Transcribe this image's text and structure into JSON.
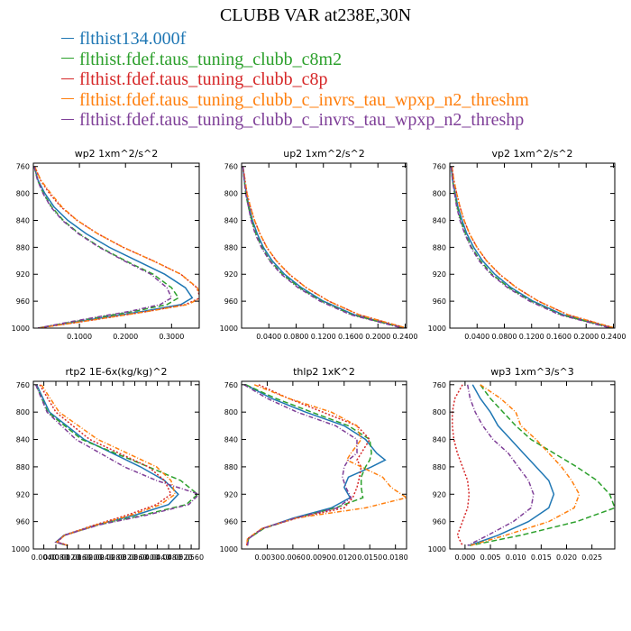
{
  "title": "CLUBB VAR at238E,30N",
  "legend": [
    {
      "name": "flthist134.000f",
      "color": "#1f77b4"
    },
    {
      "name": "flthist.fdef.taus_tuning_clubb_c8m2",
      "color": "#2ca02c"
    },
    {
      "name": "flthist.fdef.taus_tuning_clubb_c8p",
      "color": "#d62728"
    },
    {
      "name": "flthist.fdef.taus_tuning_clubb_c_invrs_tau_wpxp_n2_threshm",
      "color": "#ff7f0e"
    },
    {
      "name": "flthist.fdef.taus_tuning_clubb_c_invrs_tau_wpxp_n2_threshp",
      "color": "#7f3f98"
    }
  ],
  "chart_data": [
    {
      "type": "line",
      "title": "wp2  1xm^2/s^2",
      "xlim": [
        0,
        0.36
      ],
      "xticks": [
        "0.1000",
        "0.2000",
        "0.3000"
      ],
      "xtick_values": [
        0.1,
        0.2,
        0.3
      ],
      "ylim": [
        1000,
        755
      ],
      "yticks": [
        760,
        800,
        840,
        880,
        920,
        960,
        1000
      ],
      "y": [
        760,
        780,
        800,
        820,
        840,
        860,
        880,
        900,
        920,
        940,
        955,
        965,
        975,
        990,
        1000
      ],
      "series": [
        {
          "name": "flthist134.000f",
          "values": [
            0.002,
            0.01,
            0.025,
            0.045,
            0.075,
            0.115,
            0.165,
            0.225,
            0.285,
            0.33,
            0.345,
            0.32,
            0.24,
            0.1,
            0.01
          ]
        },
        {
          "name": "flthist.fdef.taus_tuning_clubb_c8m2",
          "values": [
            0.002,
            0.009,
            0.022,
            0.04,
            0.065,
            0.1,
            0.145,
            0.2,
            0.26,
            0.3,
            0.315,
            0.29,
            0.22,
            0.09,
            0.01
          ]
        },
        {
          "name": "flthist.fdef.taus_tuning_clubb_c8p",
          "values": [
            0.003,
            0.015,
            0.035,
            0.06,
            0.095,
            0.14,
            0.195,
            0.26,
            0.32,
            0.355,
            0.362,
            0.33,
            0.25,
            0.11,
            0.01
          ]
        },
        {
          "name": "flthist.fdef.taus_tuning_clubb_c_invrs_tau_wpxp_n2_threshm",
          "values": [
            0.003,
            0.016,
            0.038,
            0.062,
            0.095,
            0.14,
            0.195,
            0.26,
            0.32,
            0.356,
            0.364,
            0.335,
            0.25,
            0.11,
            0.01
          ]
        },
        {
          "name": "flthist.fdef.taus_tuning_clubb_c_invrs_tau_wpxp_n2_threshp",
          "values": [
            0.002,
            0.009,
            0.021,
            0.038,
            0.063,
            0.098,
            0.143,
            0.197,
            0.255,
            0.29,
            0.3,
            0.275,
            0.21,
            0.085,
            0.01
          ]
        }
      ]
    },
    {
      "type": "line",
      "title": "up2  1xm^2/s^2",
      "xlim": [
        0,
        0.242
      ],
      "xticks": [
        "0.0400",
        "0.0800",
        "0.1200",
        "0.1600",
        "0.2000",
        "0.2400"
      ],
      "xtick_values": [
        0.04,
        0.08,
        0.12,
        0.16,
        0.2,
        0.24
      ],
      "ylim": [
        1000,
        755
      ],
      "yticks": [
        760,
        800,
        840,
        880,
        920,
        960,
        1000
      ],
      "y": [
        760,
        780,
        800,
        820,
        840,
        860,
        880,
        900,
        920,
        940,
        960,
        980,
        1000
      ],
      "series": [
        {
          "name": "flthist134.000f",
          "values": [
            0.002,
            0.004,
            0.007,
            0.011,
            0.016,
            0.023,
            0.032,
            0.045,
            0.063,
            0.088,
            0.12,
            0.165,
            0.24
          ]
        },
        {
          "name": "flthist.fdef.taus_tuning_clubb_c8m2",
          "values": [
            0.002,
            0.004,
            0.006,
            0.01,
            0.015,
            0.021,
            0.03,
            0.042,
            0.06,
            0.085,
            0.117,
            0.162,
            0.238
          ]
        },
        {
          "name": "flthist.fdef.taus_tuning_clubb_c8p",
          "values": [
            0.002,
            0.005,
            0.008,
            0.013,
            0.019,
            0.027,
            0.037,
            0.051,
            0.07,
            0.095,
            0.128,
            0.172,
            0.242
          ]
        },
        {
          "name": "flthist.fdef.taus_tuning_clubb_c_invrs_tau_wpxp_n2_threshm",
          "values": [
            0.002,
            0.005,
            0.008,
            0.013,
            0.019,
            0.027,
            0.037,
            0.051,
            0.07,
            0.095,
            0.128,
            0.172,
            0.242
          ]
        },
        {
          "name": "flthist.fdef.taus_tuning_clubb_c_invrs_tau_wpxp_n2_threshp",
          "values": [
            0.002,
            0.004,
            0.006,
            0.01,
            0.014,
            0.02,
            0.029,
            0.041,
            0.058,
            0.083,
            0.115,
            0.16,
            0.236
          ]
        }
      ]
    },
    {
      "type": "line",
      "title": "vp2  1xm^2/s^2",
      "xlim": [
        0,
        0.242
      ],
      "xticks": [
        "0.0400",
        "0.0800",
        "0.1200",
        "0.1600",
        "0.2000",
        "0.2400"
      ],
      "xtick_values": [
        0.04,
        0.08,
        0.12,
        0.16,
        0.2,
        0.24
      ],
      "ylim": [
        1000,
        755
      ],
      "yticks": [
        760,
        800,
        840,
        880,
        920,
        960,
        1000
      ],
      "y": [
        760,
        780,
        800,
        820,
        840,
        860,
        880,
        900,
        920,
        940,
        960,
        980,
        1000
      ],
      "series": [
        {
          "name": "flthist134.000f",
          "values": [
            0.002,
            0.004,
            0.008,
            0.012,
            0.018,
            0.025,
            0.035,
            0.048,
            0.066,
            0.09,
            0.122,
            0.166,
            0.24
          ]
        },
        {
          "name": "flthist.fdef.taus_tuning_clubb_c8m2",
          "values": [
            0.002,
            0.004,
            0.007,
            0.011,
            0.016,
            0.023,
            0.032,
            0.045,
            0.062,
            0.087,
            0.119,
            0.163,
            0.238
          ]
        },
        {
          "name": "flthist.fdef.taus_tuning_clubb_c8p",
          "values": [
            0.003,
            0.006,
            0.01,
            0.015,
            0.021,
            0.029,
            0.04,
            0.054,
            0.073,
            0.098,
            0.13,
            0.173,
            0.242
          ]
        },
        {
          "name": "flthist.fdef.taus_tuning_clubb_c_invrs_tau_wpxp_n2_threshm",
          "values": [
            0.003,
            0.006,
            0.01,
            0.015,
            0.021,
            0.029,
            0.04,
            0.054,
            0.073,
            0.098,
            0.13,
            0.173,
            0.242
          ]
        },
        {
          "name": "flthist.fdef.taus_tuning_clubb_c_invrs_tau_wpxp_n2_threshp",
          "values": [
            0.002,
            0.004,
            0.007,
            0.01,
            0.015,
            0.022,
            0.031,
            0.043,
            0.06,
            0.085,
            0.117,
            0.161,
            0.236
          ]
        }
      ]
    },
    {
      "type": "line",
      "title": "rtp2  1E-6x(kg/kg)^2",
      "xlim": [
        0.2,
        20.8
      ],
      "xticks": [
        "0.0040",
        "0.0080",
        "0.0120",
        "0.0160",
        "0.0200",
        "0.0240",
        "0.0280",
        "0.0320",
        "0.0360",
        "0.0400",
        "0.0440",
        "0.0480",
        "0.0520",
        "0.0560"
      ],
      "xtick_values": [
        1.5,
        3.0,
        4.4,
        5.8,
        7.2,
        8.6,
        10.0,
        11.4,
        12.8,
        14.2,
        15.6,
        17.0,
        18.4,
        19.8
      ],
      "ylim": [
        1000,
        755
      ],
      "yticks": [
        760,
        800,
        840,
        880,
        920,
        960,
        1000
      ],
      "y": [
        760,
        800,
        840,
        880,
        900,
        920,
        935,
        950,
        965,
        980,
        990,
        995
      ],
      "series": [
        {
          "name": "flthist134.000f",
          "values": [
            0.6,
            2.2,
            6.5,
            13.5,
            16.5,
            18.2,
            17.0,
            13.0,
            8.0,
            4.0,
            3.0,
            4.5
          ]
        },
        {
          "name": "flthist.fdef.taus_tuning_clubb_c8m2",
          "values": [
            0.5,
            2.0,
            6.2,
            14.5,
            18.5,
            20.6,
            19.2,
            14.0,
            8.2,
            4.1,
            3.0,
            4.4
          ]
        },
        {
          "name": "flthist.fdef.taus_tuning_clubb_c8p",
          "values": [
            1.0,
            3.0,
            7.2,
            14.5,
            16.5,
            17.3,
            15.5,
            12.0,
            7.8,
            4.0,
            3.2,
            4.6
          ]
        },
        {
          "name": "flthist.fdef.taus_tuning_clubb_c_invrs_tau_wpxp_n2_threshm",
          "values": [
            1.2,
            3.4,
            8.2,
            15.5,
            17.3,
            17.8,
            16.0,
            12.5,
            8.0,
            4.1,
            3.1,
            4.5
          ]
        },
        {
          "name": "flthist.fdef.taus_tuning_clubb_c_invrs_tau_wpxp_n2_threshp",
          "values": [
            0.5,
            1.9,
            5.5,
            11.5,
            15.5,
            20.8,
            19.5,
            14.5,
            8.3,
            4.1,
            3.0,
            4.4
          ]
        }
      ]
    },
    {
      "type": "line",
      "title": "thlp2  1xK^2",
      "xlim": [
        0.0,
        0.0193
      ],
      "xticks": [
        "0.0030",
        "0.0060",
        "0.0090",
        "0.0120",
        "0.0150",
        "0.0180"
      ],
      "xtick_values": [
        0.003,
        0.006,
        0.009,
        0.012,
        0.015,
        0.018
      ],
      "ylim": [
        1000,
        755
      ],
      "yticks": [
        760,
        800,
        840,
        880,
        920,
        960,
        1000
      ],
      "y": [
        760,
        780,
        800,
        820,
        840,
        860,
        870,
        880,
        895,
        910,
        925,
        940,
        955,
        970,
        985,
        995
      ],
      "series": [
        {
          "name": "flthist134.000f",
          "values": [
            0.0005,
            0.0035,
            0.0075,
            0.012,
            0.0145,
            0.0158,
            0.0168,
            0.0152,
            0.0125,
            0.012,
            0.0127,
            0.0105,
            0.006,
            0.0025,
            0.0008,
            0.0007
          ]
        },
        {
          "name": "flthist.fdef.taus_tuning_clubb_c8m2",
          "values": [
            0.0005,
            0.004,
            0.0082,
            0.0125,
            0.015,
            0.0152,
            0.015,
            0.0145,
            0.014,
            0.014,
            0.0142,
            0.011,
            0.0063,
            0.0026,
            0.0008,
            0.0007
          ]
        },
        {
          "name": "flthist.fdef.taus_tuning_clubb_c8p",
          "values": [
            0.002,
            0.0055,
            0.0095,
            0.0135,
            0.015,
            0.014,
            0.0135,
            0.014,
            0.0138,
            0.0135,
            0.013,
            0.012,
            0.0065,
            0.0024,
            0.0007,
            0.0006
          ]
        },
        {
          "name": "flthist.fdef.taus_tuning_clubb_c_invrs_tau_wpxp_n2_threshm",
          "values": [
            0.0015,
            0.0055,
            0.0105,
            0.0135,
            0.014,
            0.0128,
            0.0123,
            0.014,
            0.0165,
            0.0175,
            0.0193,
            0.0145,
            0.0063,
            0.0024,
            0.0007,
            0.0006
          ]
        },
        {
          "name": "flthist.fdef.taus_tuning_clubb_c_invrs_tau_wpxp_n2_threshp",
          "values": [
            0.0003,
            0.003,
            0.0065,
            0.011,
            0.0135,
            0.0135,
            0.0125,
            0.012,
            0.0118,
            0.0122,
            0.0128,
            0.0112,
            0.0062,
            0.0025,
            0.0008,
            0.0007
          ]
        }
      ]
    },
    {
      "type": "line",
      "title": "wp3  1xm^3/s^3",
      "xlim": [
        -0.003,
        0.0295
      ],
      "xticks": [
        "0.000",
        "0.005",
        "0.010",
        "0.015",
        "0.020",
        "0.025"
      ],
      "xtick_values": [
        0.0,
        0.005,
        0.01,
        0.015,
        0.02,
        0.025
      ],
      "ylim": [
        1000,
        755
      ],
      "yticks": [
        760,
        800,
        840,
        880,
        920,
        960,
        1000
      ],
      "y": [
        760,
        780,
        800,
        820,
        840,
        860,
        880,
        900,
        920,
        940,
        960,
        980,
        995
      ],
      "series": [
        {
          "name": "flthist134.000f",
          "values": [
            0.0015,
            0.003,
            0.005,
            0.0065,
            0.009,
            0.0115,
            0.014,
            0.0165,
            0.0175,
            0.0165,
            0.0125,
            0.0065,
            0.0008
          ]
        },
        {
          "name": "flthist.fdef.taus_tuning_clubb_c8m2",
          "values": [
            0.003,
            0.005,
            0.0075,
            0.01,
            0.013,
            0.0175,
            0.022,
            0.026,
            0.0285,
            0.0295,
            0.022,
            0.011,
            0.001
          ]
        },
        {
          "name": "flthist.fdef.taus_tuning_clubb_c8p",
          "values": [
            -0.0005,
            -0.002,
            -0.0025,
            -0.0025,
            -0.0022,
            -0.0015,
            -0.0005,
            0.0005,
            0.0008,
            0.0005,
            -0.0005,
            -0.0015,
            -0.0005
          ]
        },
        {
          "name": "flthist.fdef.taus_tuning_clubb_c_invrs_tau_wpxp_n2_threshm",
          "values": [
            0.003,
            0.007,
            0.01,
            0.011,
            0.014,
            0.0165,
            0.019,
            0.021,
            0.0225,
            0.0215,
            0.0165,
            0.008,
            0.001
          ]
        },
        {
          "name": "flthist.fdef.taus_tuning_clubb_c_invrs_tau_wpxp_n2_threshp",
          "values": [
            0.0005,
            0.001,
            0.002,
            0.0035,
            0.0055,
            0.0085,
            0.0105,
            0.0125,
            0.0135,
            0.013,
            0.0095,
            0.0045,
            0.0005
          ]
        }
      ]
    }
  ]
}
